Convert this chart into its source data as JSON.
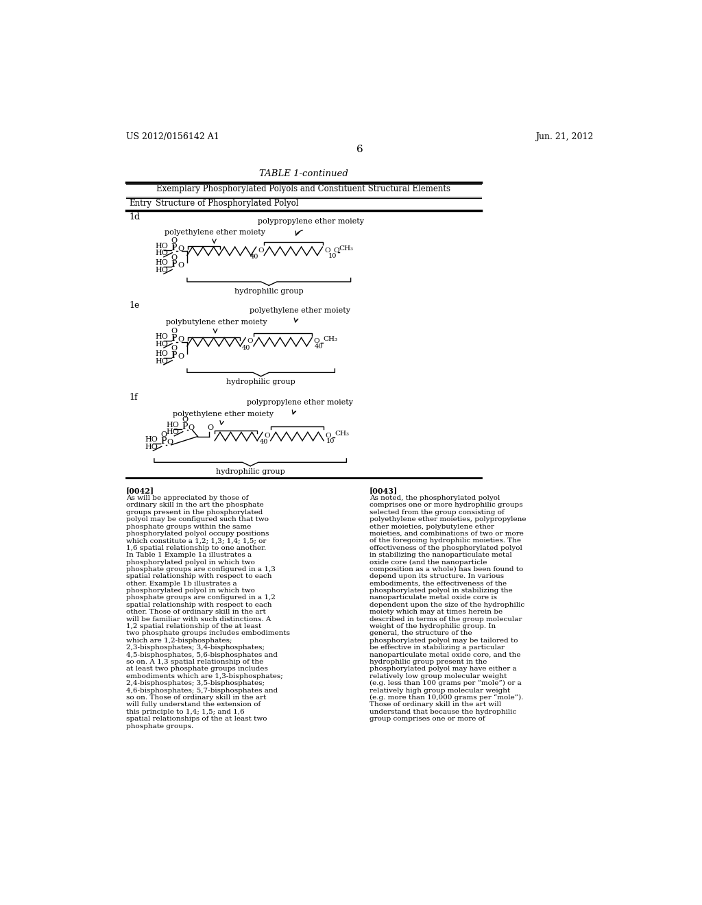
{
  "page_bg": "#ffffff",
  "header_left": "US 2012/0156142 A1",
  "header_right": "Jun. 21, 2012",
  "page_number": "6",
  "table_title": "TABLE 1-continued",
  "table_subtitle": "Exemplary Phosphorylated Polyols and Constituent Structural Elements",
  "col_header_entry": "Entry",
  "col_header_struct": "Structure of Phosphorylated Polyol",
  "entry_1d": "1d",
  "entry_1e": "1e",
  "entry_1f": "1f",
  "label_polypropylene": "polypropylene ether moiety",
  "label_polyethylene": "polyethylene ether moiety",
  "label_polybutylene": "polybutylene ether moiety",
  "label_hydrophilic": "hydrophilic group",
  "para_0042_title": "[0042]",
  "para_0042_text": "As will be appreciated by those of ordinary skill in the art the phosphate groups present in the phosphorylated polyol may be configured such that two phosphate groups within the same phosphorylated polyol occupy positions which constitute a 1,2; 1,3; 1,4; 1,5; or 1,6 spatial relationship to one another. In Table 1 Example 1a illustrates a phosphorylated polyol in which two phosphate groups are configured in a 1,3 spatial relationship with respect to each other. Example 1b illustrates a phosphorylated polyol in which two phosphate groups are configured in a 1,2 spatial relationship with respect to each other. Those of ordinary skill in the art will be familiar with such distinctions. A 1,2 spatial relationship of the at least two phosphate groups includes embodiments which are 1,2-bisphosphates; 2,3-bisphosphates; 3,4-bisphosphates; 4,5-bisphosphates, 5,6-bisphosphates and so on. A 1,3 spatial relationship of the at least two phosphate groups includes embodiments which are 1,3-bisphosphates; 2,4-bisphosphates;  3,5-bisphosphates;  4,6-bisphosphates; 5,7-bisphosphates and so on. Those of ordinary skill in the art will fully understand the extension of this principle to 1,4; 1,5; and 1,6 spatial relationships of the at least two phosphate groups.",
  "para_0043_title": "[0043]",
  "para_0043_text": "As noted, the phosphorylated polyol comprises one or more hydrophilic groups selected from the group consisting of polyethylene ether moieties, polypropylene ether moieties, polybutylene ether moieties, and combinations of two or more of the foregoing hydrophilic moieties. The effectiveness of the phosphorylated polyol in stabilizing the nanoparticulate metal oxide core (and the nanoparticle composition as a whole) has been found to depend upon its structure. In various embodiments, the effectiveness of the phosphorylated polyol in stabilizing the nanoparticulate metal oxide core is dependent upon the size of the hydrophilic moiety which may at times herein be described in terms of the group molecular weight of the hydrophilic group. In general, the structure of the phosphorylated polyol may be tailored to be effective in stabilizing a particular nanoparticulate metal oxide core, and the hydrophilic group present in the phosphorylated polyol may have either a relatively low group molecular weight (e.g. less than 100 grams per “mole”) or a relatively high group molecular weight (e.g. more than 10,000 grams per “mole”). Those of ordinary skill in the art will understand that because the hydrophilic group comprises one or more of"
}
